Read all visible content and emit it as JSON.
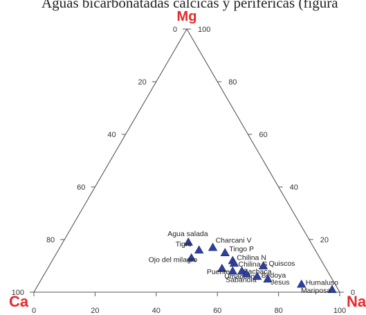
{
  "caption": "Aguas bicarbonatadas cálcicas y periféricas (figura",
  "chart_data": {
    "type": "scatter",
    "subtype": "ternary",
    "vertices": {
      "top": "Mg",
      "left": "Ca",
      "right": "Na"
    },
    "vertex_color": "#e52a2a",
    "marker_color": "#2f3f9c",
    "marker_shape": "triangle",
    "left_axis_ticks": [
      0,
      20,
      40,
      60,
      80,
      100
    ],
    "right_axis_ticks": [
      100,
      80,
      60,
      40,
      20,
      0
    ],
    "bottom_axis_ticks": [
      0,
      20,
      40,
      60,
      80,
      100
    ],
    "points": [
      {
        "label": "Agua salada",
        "Ca": 40,
        "Mg": 19,
        "Na": 41
      },
      {
        "label": "Tigre",
        "Ca": 38,
        "Mg": 16,
        "Na": 46
      },
      {
        "label": "Charcani V",
        "Ca": 33,
        "Mg": 17,
        "Na": 50
      },
      {
        "label": "Ojo del milagro",
        "Ca": 42,
        "Mg": 13,
        "Na": 45
      },
      {
        "label": "Tingo P",
        "Ca": 30,
        "Mg": 15,
        "Na": 55
      },
      {
        "label": "Chilina N",
        "Ca": 29,
        "Mg": 12,
        "Na": 59
      },
      {
        "label": "Chilina S",
        "Ca": 29,
        "Mg": 11,
        "Na": 60
      },
      {
        "label": "Puente",
        "Ca": 34,
        "Mg": 9,
        "Na": 57
      },
      {
        "label": "Umacollo",
        "Ca": 31,
        "Mg": 8,
        "Na": 61
      },
      {
        "label": "Sachaca",
        "Ca": 28,
        "Mg": 8,
        "Na": 64
      },
      {
        "label": "Sabandia",
        "Ca": 27,
        "Mg": 7,
        "Na": 66
      },
      {
        "label": "Quiscos",
        "Ca": 20,
        "Mg": 10,
        "Na": 70
      },
      {
        "label": "Bedoya",
        "Ca": 24,
        "Mg": 6,
        "Na": 70
      },
      {
        "label": "Jesus",
        "Ca": 21,
        "Mg": 5,
        "Na": 74
      },
      {
        "label": "Humaluso",
        "Ca": 11,
        "Mg": 3,
        "Na": 86
      },
      {
        "label": "Mariposa",
        "Ca": 2,
        "Mg": 1,
        "Na": 97
      }
    ]
  }
}
